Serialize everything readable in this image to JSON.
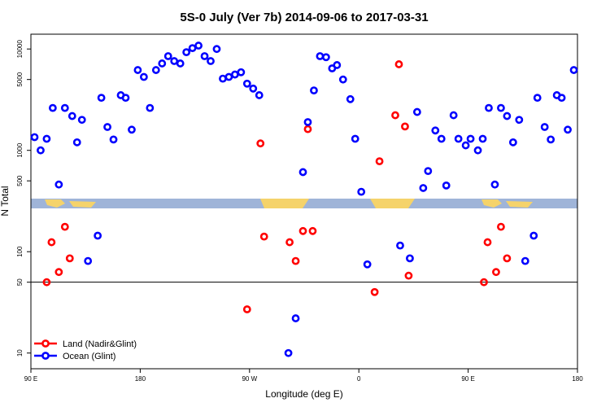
{
  "chart_data": {
    "type": "scatter",
    "title": "5S-0 July (Ver 7b)   2014-09-06 to 2017-03-31",
    "x_label": "Longitude (deg E)",
    "y_label": "N Total",
    "log_y": true,
    "xlim": [
      90,
      540
    ],
    "ylim": [
      7,
      14000
    ],
    "xticks": [
      {
        "value": 90,
        "label": "90 E"
      },
      180,
      {
        "value": 270,
        "label": "90 W"
      },
      {
        "value": 360,
        "label": "0"
      },
      {
        "value": 450,
        "label": "90 E"
      },
      {
        "value": 540,
        "label": "180"
      }
    ],
    "yticks": [
      10,
      50,
      100,
      500,
      1000,
      5000,
      10000
    ],
    "hline": 50,
    "legend": "bottom-left",
    "series": [
      {
        "name": "Land (Nadir&Glint)",
        "color": "#ff0000",
        "x": [
          103,
          107,
          113,
          118,
          122,
          268,
          279,
          282,
          303,
          308,
          314,
          318,
          322,
          373,
          377,
          390,
          393,
          398,
          401,
          463,
          466,
          473,
          477,
          482
        ],
        "y": [
          50,
          124,
          63,
          176,
          86,
          27,
          1170,
          141,
          124,
          81,
          160,
          1620,
          160,
          40,
          780,
          2220,
          7070,
          1720,
          58,
          50,
          124,
          63,
          176,
          86
        ]
      },
      {
        "name": "Ocean (Glint)",
        "color": "#0000ff",
        "x": [
          93,
          98,
          103,
          108,
          113,
          118,
          124,
          128,
          132,
          137,
          145,
          148,
          153,
          158,
          164,
          168,
          173,
          178,
          183,
          188,
          193,
          198,
          203,
          208,
          213,
          218,
          223,
          228,
          233,
          238,
          243,
          248,
          253,
          258,
          263,
          268,
          273,
          278,
          302,
          308,
          314,
          318,
          323,
          328,
          333,
          338,
          342,
          347,
          353,
          357,
          362,
          367,
          394,
          402,
          408,
          413,
          417,
          423,
          428,
          432,
          438,
          442,
          448,
          452,
          458,
          462,
          467,
          472,
          477,
          482,
          487,
          492,
          497,
          504,
          507,
          513,
          518,
          523,
          527,
          532,
          537
        ],
        "y": [
          1350,
          1000,
          1300,
          2620,
          460,
          2620,
          2180,
          1200,
          2000,
          81,
          144,
          3300,
          1700,
          1280,
          3500,
          3300,
          1600,
          6200,
          5300,
          2620,
          6200,
          7200,
          8500,
          7600,
          7200,
          9300,
          10200,
          10800,
          8500,
          7600,
          10000,
          5100,
          5300,
          5600,
          5900,
          4550,
          4070,
          3500,
          10,
          22,
          610,
          1900,
          3900,
          8500,
          8300,
          6440,
          6940,
          5000,
          3200,
          1300,
          390,
          75,
          115,
          86,
          2390,
          425,
          625,
          1570,
          1300,
          450,
          2220,
          1300,
          1120,
          1300,
          1000,
          1300,
          2620,
          460,
          2620,
          2180,
          1200,
          2000,
          81,
          144,
          3300,
          1700,
          1280,
          3500,
          3300,
          1600,
          6200
        ]
      }
    ]
  }
}
